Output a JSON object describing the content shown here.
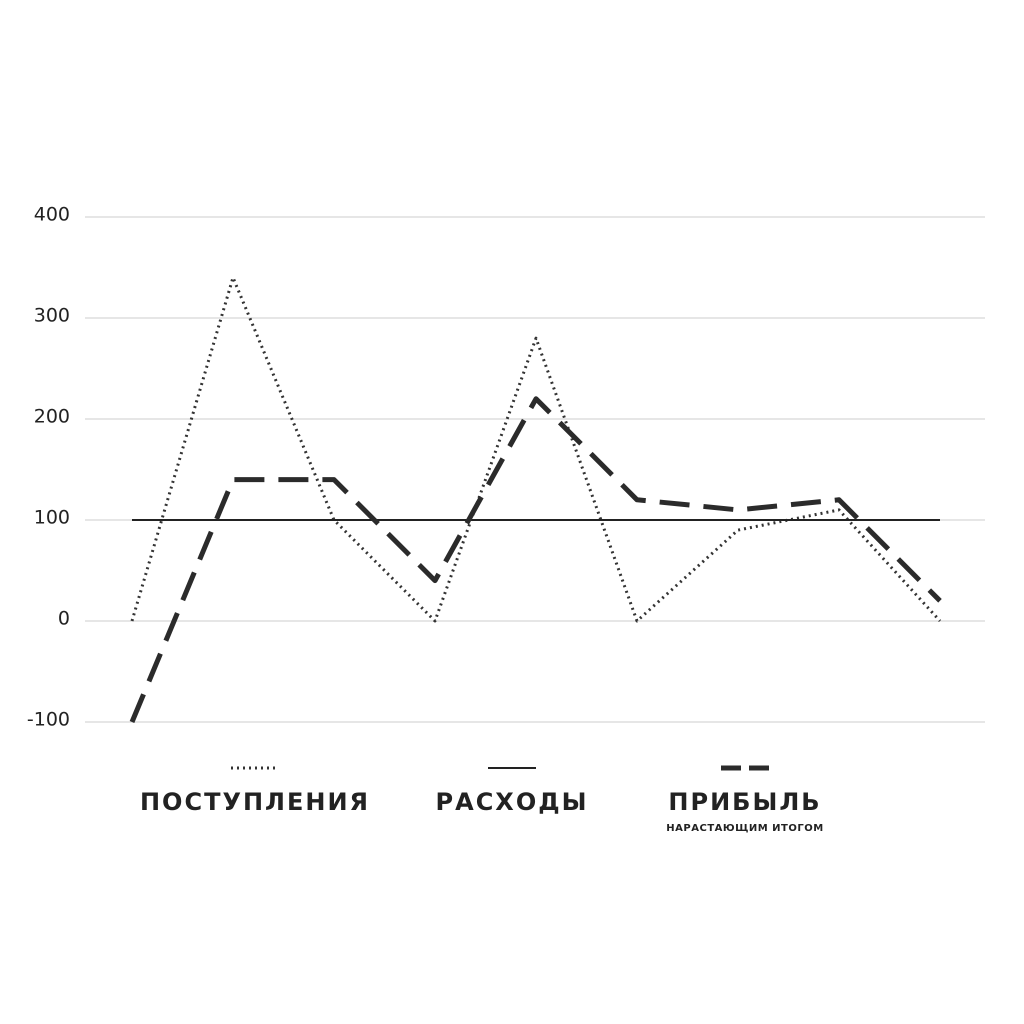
{
  "chart_data": {
    "type": "line",
    "categories": [
      null,
      null,
      null,
      null,
      null,
      null,
      null,
      null,
      null
    ],
    "series": [
      {
        "name": "ПОСТУПЛЕНИЯ",
        "color": "#333333",
        "style": "dotted",
        "values": [
          0,
          340,
          100,
          0,
          280,
          0,
          90,
          110,
          0
        ]
      },
      {
        "name": "РАСХОДЫ",
        "color": "#222222",
        "style": "solid",
        "values": [
          100,
          100,
          100,
          100,
          100,
          100,
          100,
          100,
          100
        ]
      },
      {
        "name": "ПРИБЫЛЬ",
        "legend_subtitle": "НАРАСТАЮЩИМ ИТОГОМ",
        "color": "#2b2b2b",
        "style": "dashed",
        "values": [
          -100,
          140,
          140,
          40,
          220,
          120,
          110,
          120,
          20
        ]
      }
    ],
    "ylim": [
      -100,
      400
    ],
    "yticks": [
      -100,
      0,
      100,
      200,
      300,
      400
    ],
    "grid": true,
    "legend": "bottom"
  }
}
